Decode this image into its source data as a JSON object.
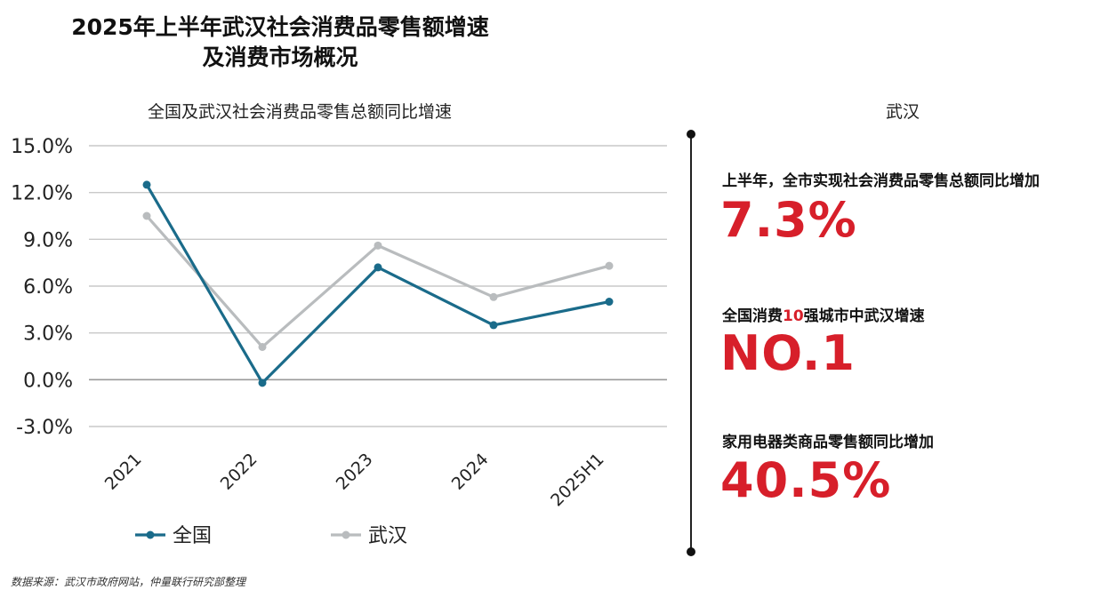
{
  "header": {
    "title_line1": "2025年上半年武汉社会消费品零售额增速",
    "title_line2": "及消费市场概况"
  },
  "chart_data": {
    "type": "line",
    "title": "全国及武汉社会消费品零售总额同比增速",
    "categories": [
      "2021",
      "2022",
      "2023",
      "2024",
      "2025H1"
    ],
    "series": [
      {
        "name": "全国",
        "values": [
          12.5,
          -0.2,
          7.2,
          3.5,
          5.0
        ],
        "color": "#1a6b8a"
      },
      {
        "name": "武汉",
        "values": [
          10.5,
          2.1,
          8.6,
          5.3,
          7.3
        ],
        "color": "#b9bcbe"
      }
    ],
    "y_ticks": [
      "15.0%",
      "12.0%",
      "9.0%",
      "6.0%",
      "3.0%",
      "0.0%",
      "-3.0%"
    ],
    "ylim": [
      -3,
      15
    ],
    "grid": true,
    "legend_position": "bottom-left"
  },
  "panel": {
    "title": "武汉",
    "stats": [
      {
        "label": "上半年，全市实现社会消费品零售总额同比增加",
        "value": "7.3%"
      },
      {
        "label_prefix": "全国消费",
        "label_highlight": "10",
        "label_suffix": "强城市中武汉增速",
        "value": "NO.1"
      },
      {
        "label": "家用电器类商品零售额同比增加",
        "value": "40.5%"
      }
    ]
  },
  "footer": {
    "source": "数据来源：武汉市政府网站，仲量联行研究部整理"
  }
}
